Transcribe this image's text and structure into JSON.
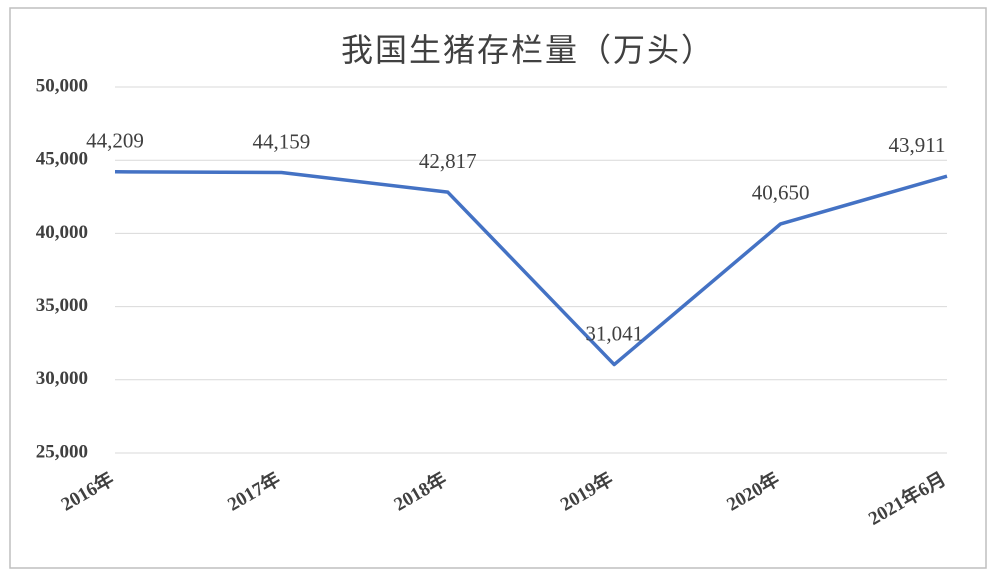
{
  "chart_data": {
    "type": "line",
    "title": "我国生猪存栏量（万头）",
    "categories": [
      "2016年",
      "2017年",
      "2018年",
      "2019年",
      "2020年",
      "2021年6月"
    ],
    "values": [
      44209,
      44159,
      42817,
      31041,
      40650,
      43911
    ],
    "value_labels": [
      "44,209",
      "44,159",
      "42,817",
      "31,041",
      "40,650",
      "43,911"
    ],
    "color": "#4472c4",
    "ylim": [
      25000,
      50000
    ],
    "yticks": [
      {
        "value": 25000,
        "label": "25,000"
      },
      {
        "value": 30000,
        "label": "30,000"
      },
      {
        "value": 35000,
        "label": "35,000"
      },
      {
        "value": 40000,
        "label": "40,000"
      },
      {
        "value": 45000,
        "label": "45,000"
      },
      {
        "value": 50000,
        "label": "50,000"
      }
    ],
    "grid": true
  }
}
